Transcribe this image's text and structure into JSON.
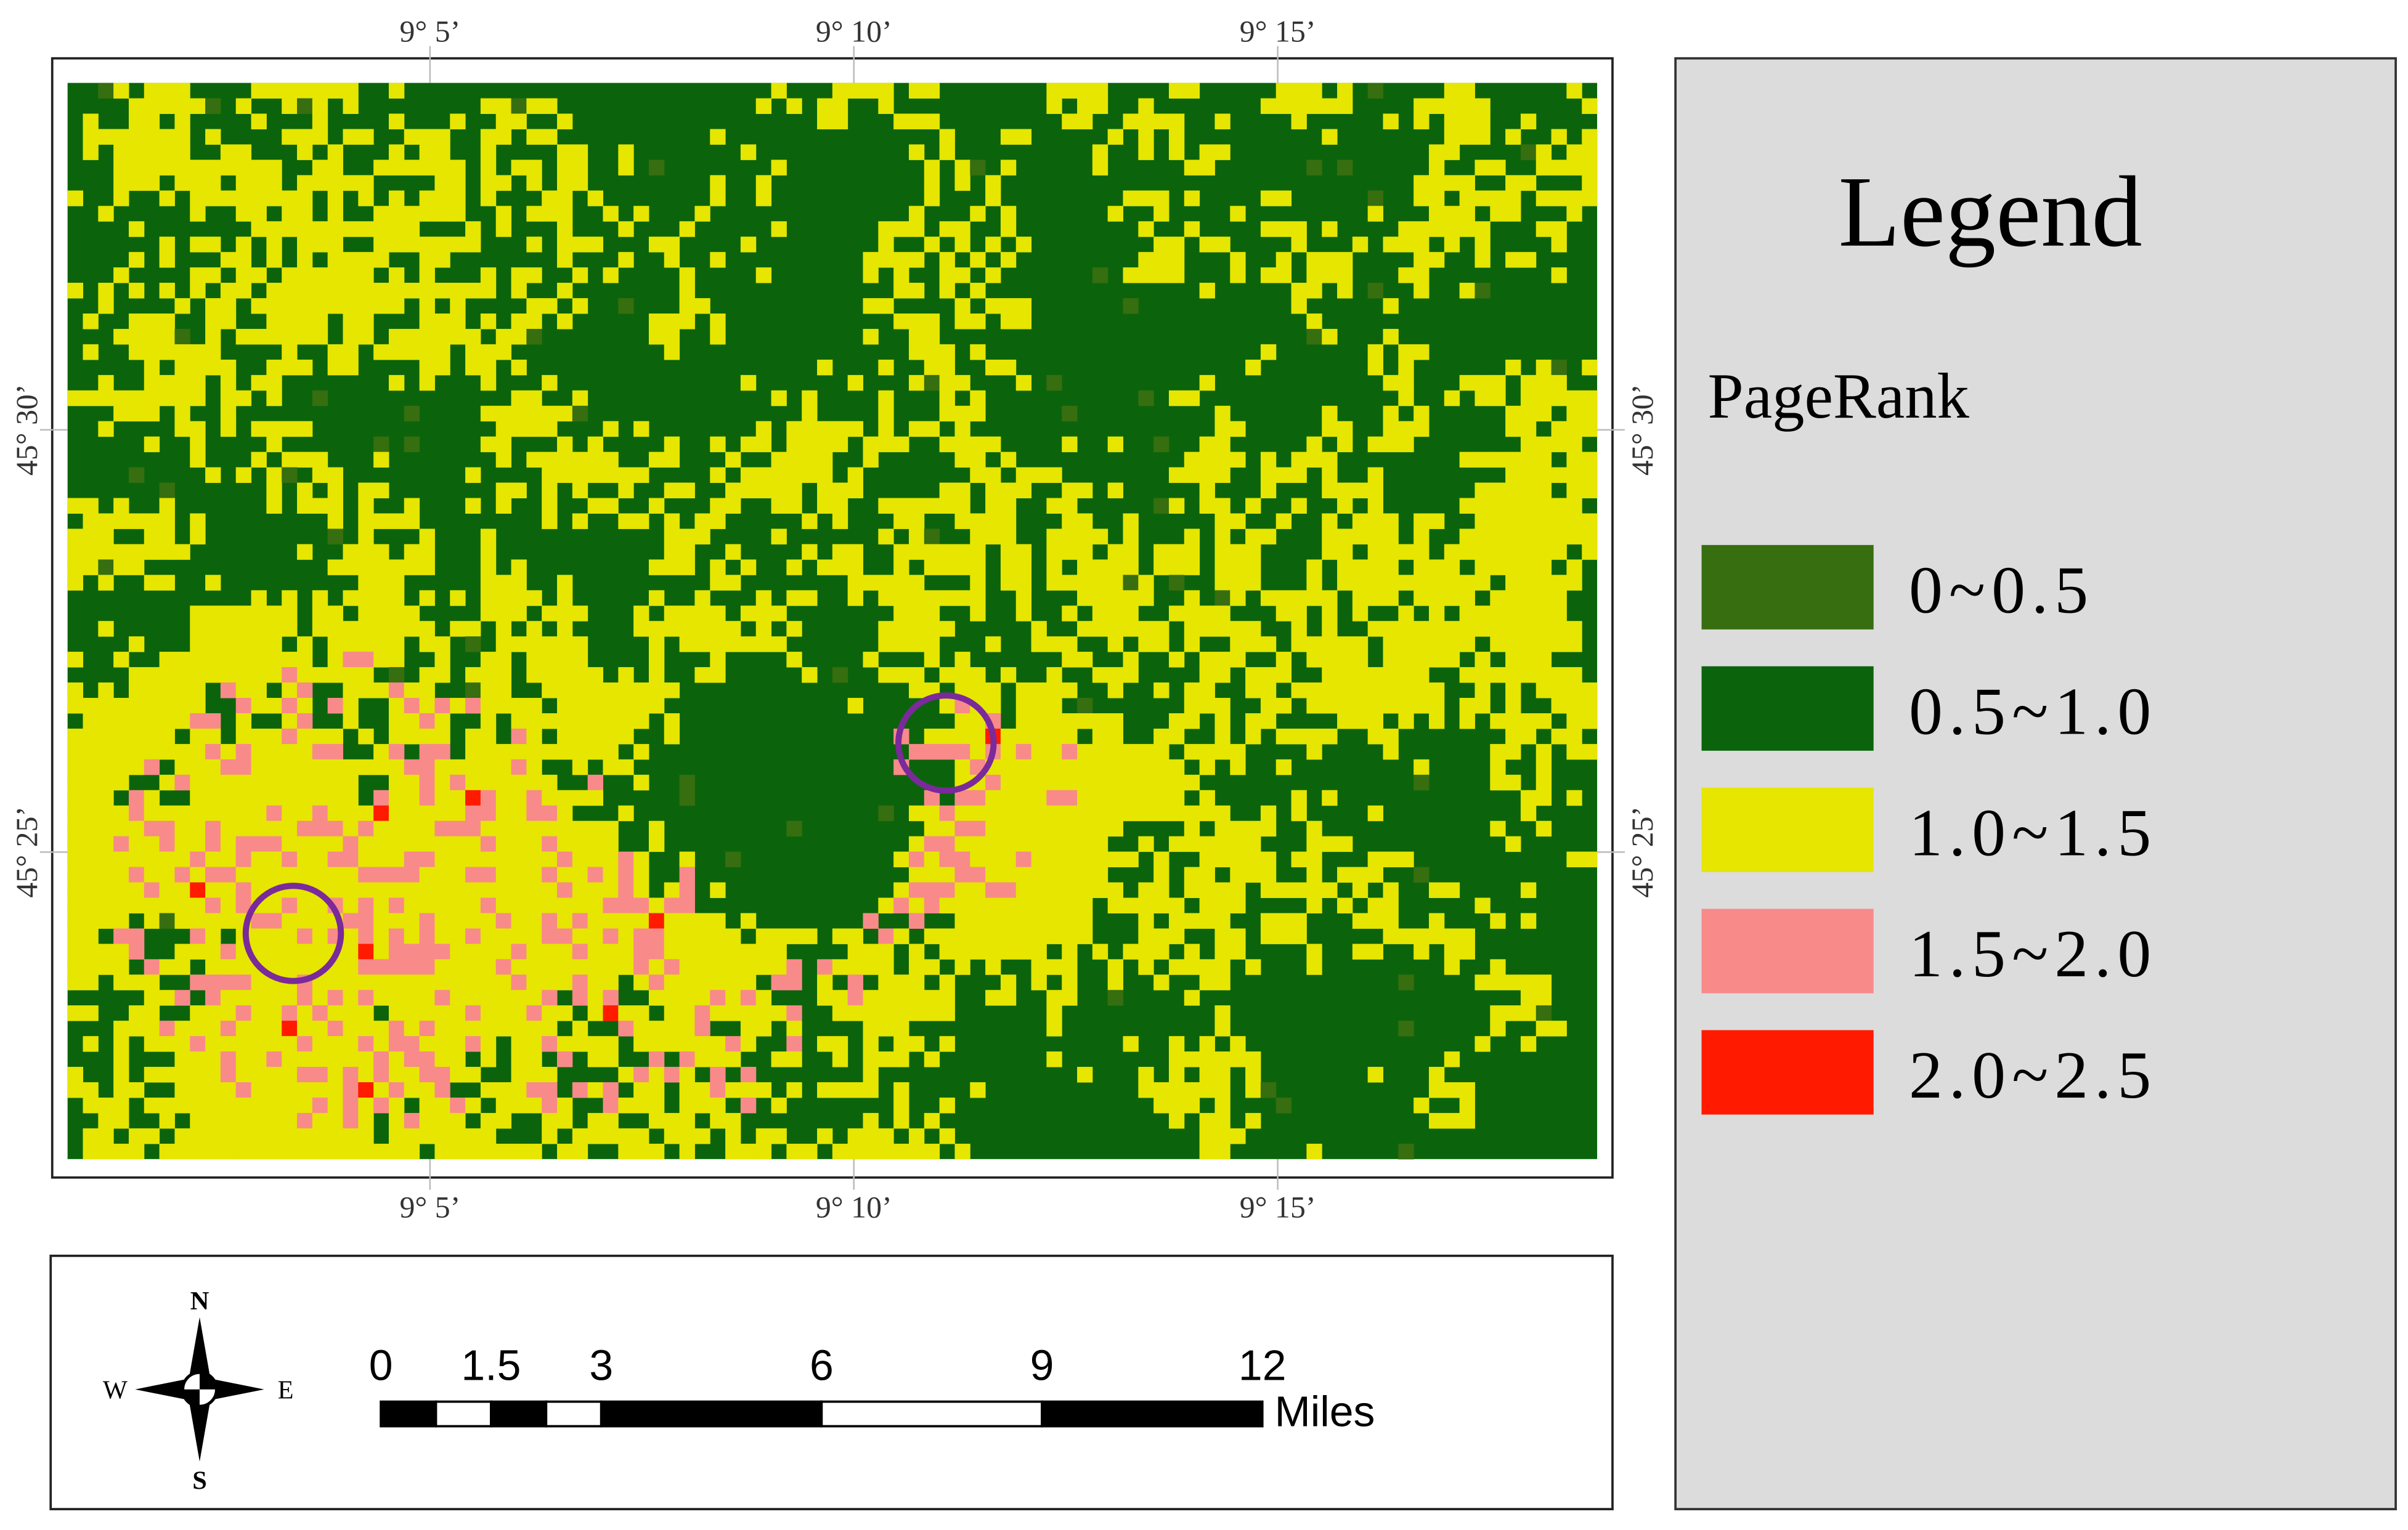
{
  "map": {
    "graticule": {
      "x_labels": [
        "9° 5’",
        "9° 10’",
        "9° 15’"
      ],
      "y_labels": [
        "45° 30’",
        "45° 25’"
      ]
    },
    "base_color": "#0b640b"
  },
  "legend": {
    "title": "Legend",
    "field": "PageRank",
    "items": [
      {
        "label": "0~0.5",
        "color": "#366e10"
      },
      {
        "label": "0.5~1.0",
        "color": "#0b640b"
      },
      {
        "label": "1.0~1.5",
        "color": "#e6e600"
      },
      {
        "label": "1.5~2.0",
        "color": "#f88a8a"
      },
      {
        "label": "2.0~2.5",
        "color": "#ff1a00"
      }
    ]
  },
  "scale_bar": {
    "ticks": [
      0,
      1.5,
      3,
      6,
      9,
      12
    ],
    "unit": "Miles"
  },
  "compass": {
    "n": "N",
    "e": "E",
    "s": "S",
    "w": "W"
  }
}
